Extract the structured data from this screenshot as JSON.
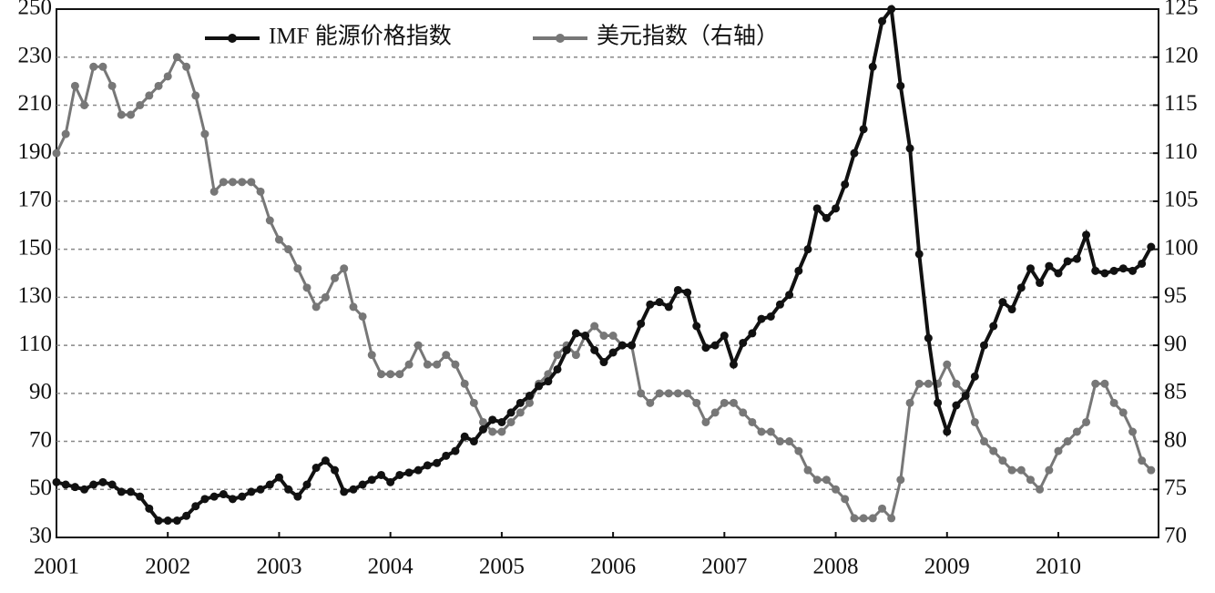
{
  "chart_data": {
    "type": "line",
    "x": [
      2001,
      2001.083,
      2001.167,
      2001.25,
      2001.333,
      2001.417,
      2001.5,
      2001.583,
      2001.667,
      2001.75,
      2001.833,
      2001.917,
      2002,
      2002.083,
      2002.167,
      2002.25,
      2002.333,
      2002.417,
      2002.5,
      2002.583,
      2002.667,
      2002.75,
      2002.833,
      2002.917,
      2003,
      2003.083,
      2003.167,
      2003.25,
      2003.333,
      2003.417,
      2003.5,
      2003.583,
      2003.667,
      2003.75,
      2003.833,
      2003.917,
      2004,
      2004.083,
      2004.167,
      2004.25,
      2004.333,
      2004.417,
      2004.5,
      2004.583,
      2004.667,
      2004.75,
      2004.833,
      2004.917,
      2005,
      2005.083,
      2005.167,
      2005.25,
      2005.333,
      2005.417,
      2005.5,
      2005.583,
      2005.667,
      2005.75,
      2005.833,
      2005.917,
      2006,
      2006.083,
      2006.167,
      2006.25,
      2006.333,
      2006.417,
      2006.5,
      2006.583,
      2006.667,
      2006.75,
      2006.833,
      2006.917,
      2007,
      2007.083,
      2007.167,
      2007.25,
      2007.333,
      2007.417,
      2007.5,
      2007.583,
      2007.667,
      2007.75,
      2007.833,
      2007.917,
      2008,
      2008.083,
      2008.167,
      2008.25,
      2008.333,
      2008.417,
      2008.5,
      2008.583,
      2008.667,
      2008.75,
      2008.833,
      2008.917,
      2009,
      2009.083,
      2009.167,
      2009.25,
      2009.333,
      2009.417,
      2009.5,
      2009.583,
      2009.667,
      2009.75,
      2009.833,
      2009.917,
      2010,
      2010.083,
      2010.167,
      2010.25,
      2010.333,
      2010.417,
      2010.5,
      2010.583,
      2010.667,
      2010.75,
      2010.833
    ],
    "series": [
      {
        "name": "IMF 能源价格指数",
        "color": "#111111",
        "values": [
          53,
          52,
          51,
          50,
          52,
          53,
          52,
          49,
          49,
          47,
          42,
          37,
          37,
          37,
          39,
          43,
          46,
          47,
          48,
          46,
          47,
          49,
          50,
          52,
          55,
          50,
          47,
          52,
          59,
          62,
          58,
          49,
          50,
          52,
          54,
          56,
          53,
          56,
          57,
          58,
          60,
          61,
          64,
          66,
          72,
          70,
          75,
          79,
          78,
          82,
          86,
          89,
          93,
          95,
          100,
          108,
          115,
          114,
          108,
          103,
          107,
          110,
          110,
          119,
          127,
          128,
          126,
          133,
          132,
          118,
          109,
          110,
          114,
          102,
          111,
          115,
          121,
          122,
          127,
          131,
          141,
          150,
          167,
          163,
          167,
          177,
          190,
          200,
          226,
          245,
          250,
          218,
          192,
          148,
          113,
          86,
          74,
          85,
          89,
          97,
          110,
          118,
          128,
          125,
          134,
          142,
          136,
          143,
          140,
          145,
          146,
          156,
          141,
          140,
          141,
          142,
          141,
          144,
          151
        ]
      },
      {
        "name": "美元指数（右轴）",
        "color": "#777777",
        "axis": "y2",
        "values": [
          110,
          112,
          117,
          115,
          119,
          119,
          117,
          114,
          114,
          115,
          116,
          117,
          118,
          120,
          119,
          116,
          112,
          106,
          107,
          107,
          107,
          107,
          106,
          103,
          101,
          100,
          98,
          96,
          94,
          95,
          97,
          98,
          94,
          93,
          89,
          87,
          87,
          87,
          88,
          90,
          88,
          88,
          89,
          88,
          86,
          84,
          82,
          81,
          81,
          82,
          83,
          84,
          86,
          87,
          89,
          90,
          89,
          91,
          92,
          91,
          91,
          90,
          90,
          85,
          84,
          85,
          85,
          85,
          85,
          84,
          82,
          83,
          84,
          84,
          83,
          82,
          81,
          81,
          80,
          80,
          79,
          77,
          76,
          76,
          75,
          74,
          72,
          72,
          72,
          73,
          72,
          76,
          84,
          86,
          86,
          86,
          88,
          86,
          85,
          82,
          80,
          79,
          78,
          77,
          77,
          76,
          75,
          77,
          79,
          80,
          81,
          82,
          86,
          86,
          84,
          83,
          81,
          78,
          77
        ]
      }
    ],
    "xlim": [
      2001,
      2010.9
    ],
    "xticks": [
      2001,
      2002,
      2003,
      2004,
      2005,
      2006,
      2007,
      2008,
      2009,
      2010
    ],
    "ylim": [
      30,
      250
    ],
    "yticks": [
      30,
      50,
      70,
      90,
      110,
      130,
      150,
      170,
      190,
      210,
      230,
      250
    ],
    "y2lim": [
      70,
      125
    ],
    "y2ticks": [
      70,
      75,
      80,
      85,
      90,
      95,
      100,
      105,
      110,
      115,
      120,
      125
    ],
    "grid": true
  }
}
